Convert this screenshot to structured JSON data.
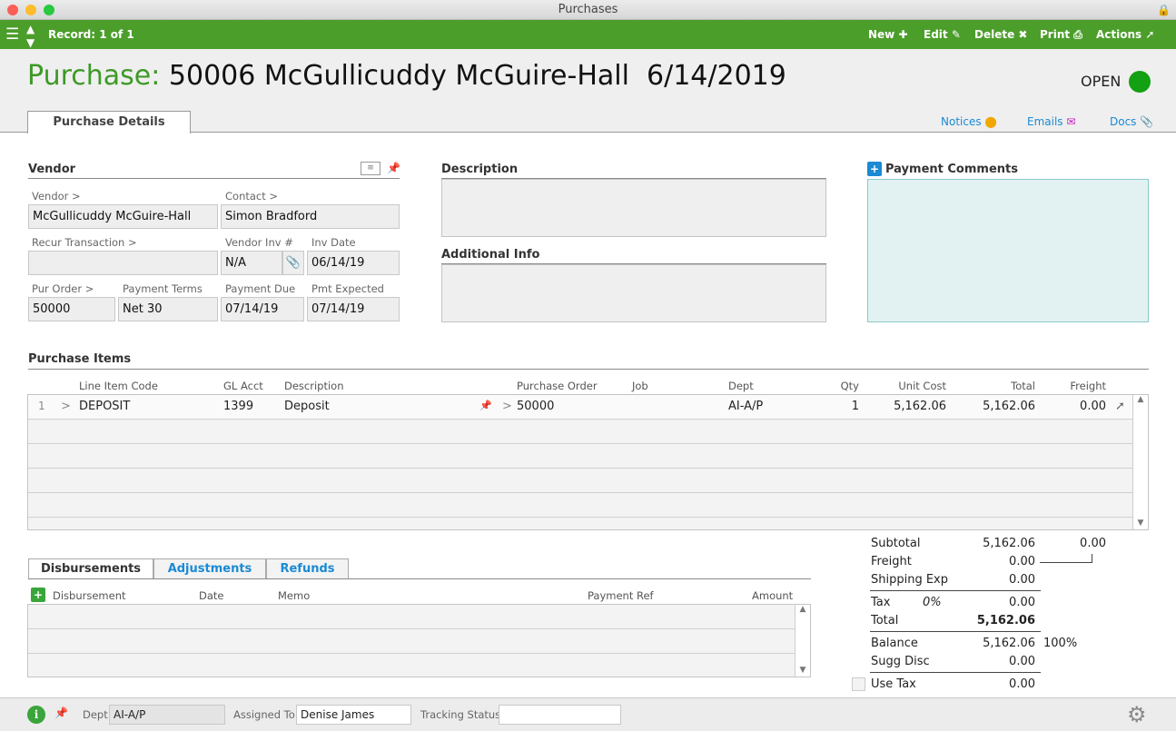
{
  "window": {
    "title": "Purchases"
  },
  "toolbar": {
    "record": "Record: 1 of 1",
    "new": "New",
    "edit": "Edit",
    "delete": "Delete",
    "print": "Print",
    "actions": "Actions"
  },
  "header": {
    "label": "Purchase:",
    "title": "50006 McGullicuddy McGuire-Hall  6/14/2019",
    "status": "OPEN",
    "status_color": "#13a013",
    "tab": "Purchase Details",
    "notices": "Notices",
    "emails": "Emails",
    "docs": "Docs"
  },
  "vendor": {
    "section": "Vendor",
    "vendor_label": "Vendor >",
    "vendor": "McGullicuddy McGuire-Hall",
    "contact_label": "Contact >",
    "contact": "Simon Bradford",
    "recur_label": "Recur Transaction >",
    "recur": "",
    "vinv_label": "Vendor Inv #",
    "vinv": "N/A",
    "invdate_label": "Inv Date",
    "invdate": "06/14/19",
    "po_label": "Pur Order >",
    "po": "50000",
    "terms_label": "Payment Terms",
    "terms": "Net 30",
    "due_label": "Payment Due",
    "due": "07/14/19",
    "exp_label": "Pmt Expected",
    "exp": "07/14/19"
  },
  "description": {
    "label": "Description",
    "value": "",
    "additional_label": "Additional Info",
    "additional": ""
  },
  "payment_comments": {
    "label": "Payment Comments",
    "value": ""
  },
  "items": {
    "section": "Purchase Items",
    "columns": [
      "Line Item Code",
      "GL Acct",
      "Description",
      "Purchase Order",
      "Job",
      "Dept",
      "Qty",
      "Unit Cost",
      "Total",
      "Freight"
    ],
    "rows": [
      {
        "num": "1",
        "code": "DEPOSIT",
        "gl": "1399",
        "desc": "Deposit",
        "po": "50000",
        "job": "",
        "dept": "AI-A/P",
        "qty": "1",
        "unit": "5,162.06",
        "total": "5,162.06",
        "freight": "0.00"
      }
    ]
  },
  "disb": {
    "tabs": [
      "Disbursements",
      "Adjustments",
      "Refunds"
    ],
    "columns": [
      "Disbursement",
      "Date",
      "Memo",
      "Payment Ref",
      "Amount"
    ]
  },
  "totals": {
    "subtotal_label": "Subtotal",
    "subtotal": "5,162.06",
    "freight_total": "0.00",
    "freight_label": "Freight",
    "freight": "0.00",
    "ship_label": "Shipping Exp",
    "ship": "0.00",
    "tax_label": "Tax",
    "tax_pct": "0%",
    "tax": "0.00",
    "total_label": "Total",
    "total": "5,162.06",
    "balance_label": "Balance",
    "balance": "5,162.06",
    "balance_pct": "100%",
    "sugg_label": "Sugg Disc",
    "sugg": "0.00",
    "usetax_label": "Use Tax",
    "usetax": "0.00"
  },
  "footer": {
    "dept_label": "Dept",
    "dept": "AI-A/P",
    "assigned_label": "Assigned To",
    "assigned": "Denise James",
    "tracking_label": "Tracking Status",
    "tracking": ""
  }
}
